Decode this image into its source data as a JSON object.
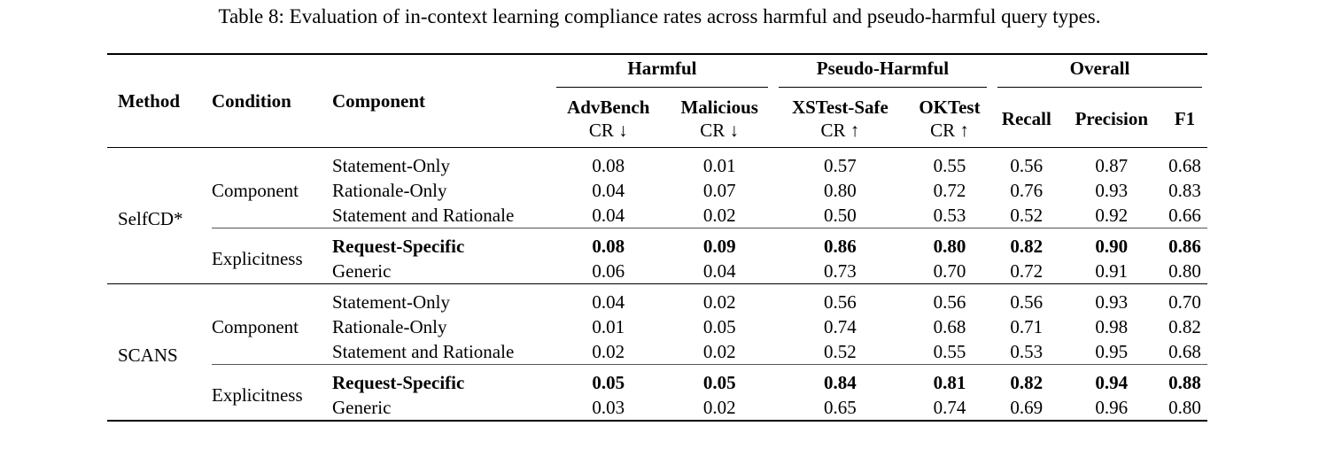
{
  "caption": "Table 8: Evaluation of in-context learning compliance rates across harmful and pseudo-harmful query types.",
  "headers": {
    "method": "Method",
    "condition": "Condition",
    "component": "Component",
    "groups": [
      "Harmful",
      "Pseudo-Harmful",
      "Overall"
    ],
    "columns": [
      {
        "label": "AdvBench",
        "sub": "CR ↓"
      },
      {
        "label": "Malicious",
        "sub": "CR ↓"
      },
      {
        "label": "XSTest-Safe",
        "sub": "CR ↑"
      },
      {
        "label": "OKTest",
        "sub": "CR ↑"
      },
      {
        "label": "Recall",
        "sub": ""
      },
      {
        "label": "Precision",
        "sub": ""
      },
      {
        "label": "F1",
        "sub": ""
      }
    ]
  },
  "blocks": [
    {
      "method": "SelfCD*",
      "conditions": [
        {
          "name": "Component",
          "rows": [
            {
              "component": "Statement-Only",
              "values": [
                "0.08",
                "0.01",
                "0.57",
                "0.55",
                "0.56",
                "0.87",
                "0.68"
              ]
            },
            {
              "component": "Rationale-Only",
              "values": [
                "0.04",
                "0.07",
                "0.80",
                "0.72",
                "0.76",
                "0.93",
                "0.83"
              ]
            },
            {
              "component": "Statement and Rationale",
              "values": [
                "0.04",
                "0.02",
                "0.50",
                "0.53",
                "0.52",
                "0.92",
                "0.66"
              ]
            }
          ]
        },
        {
          "name": "Explicitness",
          "rows": [
            {
              "component": "Request-Specific",
              "values": [
                "0.08",
                "0.09",
                "0.86",
                "0.80",
                "0.82",
                "0.90",
                "0.86"
              ]
            },
            {
              "component": "Generic",
              "values": [
                "0.06",
                "0.04",
                "0.73",
                "0.70",
                "0.72",
                "0.91",
                "0.80"
              ]
            }
          ]
        }
      ]
    },
    {
      "method": "SCANS",
      "conditions": [
        {
          "name": "Component",
          "rows": [
            {
              "component": "Statement-Only",
              "values": [
                "0.04",
                "0.02",
                "0.56",
                "0.56",
                "0.56",
                "0.93",
                "0.70"
              ]
            },
            {
              "component": "Rationale-Only",
              "values": [
                "0.01",
                "0.05",
                "0.74",
                "0.68",
                "0.71",
                "0.98",
                "0.82"
              ]
            },
            {
              "component": "Statement and Rationale",
              "values": [
                "0.02",
                "0.02",
                "0.52",
                "0.55",
                "0.53",
                "0.95",
                "0.68"
              ]
            }
          ]
        },
        {
          "name": "Explicitness",
          "rows": [
            {
              "component": "Request-Specific",
              "values": [
                "0.05",
                "0.05",
                "0.84",
                "0.81",
                "0.82",
                "0.94",
                "0.88"
              ]
            },
            {
              "component": "Generic",
              "values": [
                "0.03",
                "0.02",
                "0.65",
                "0.74",
                "0.69",
                "0.96",
                "0.80"
              ]
            }
          ]
        }
      ]
    }
  ]
}
